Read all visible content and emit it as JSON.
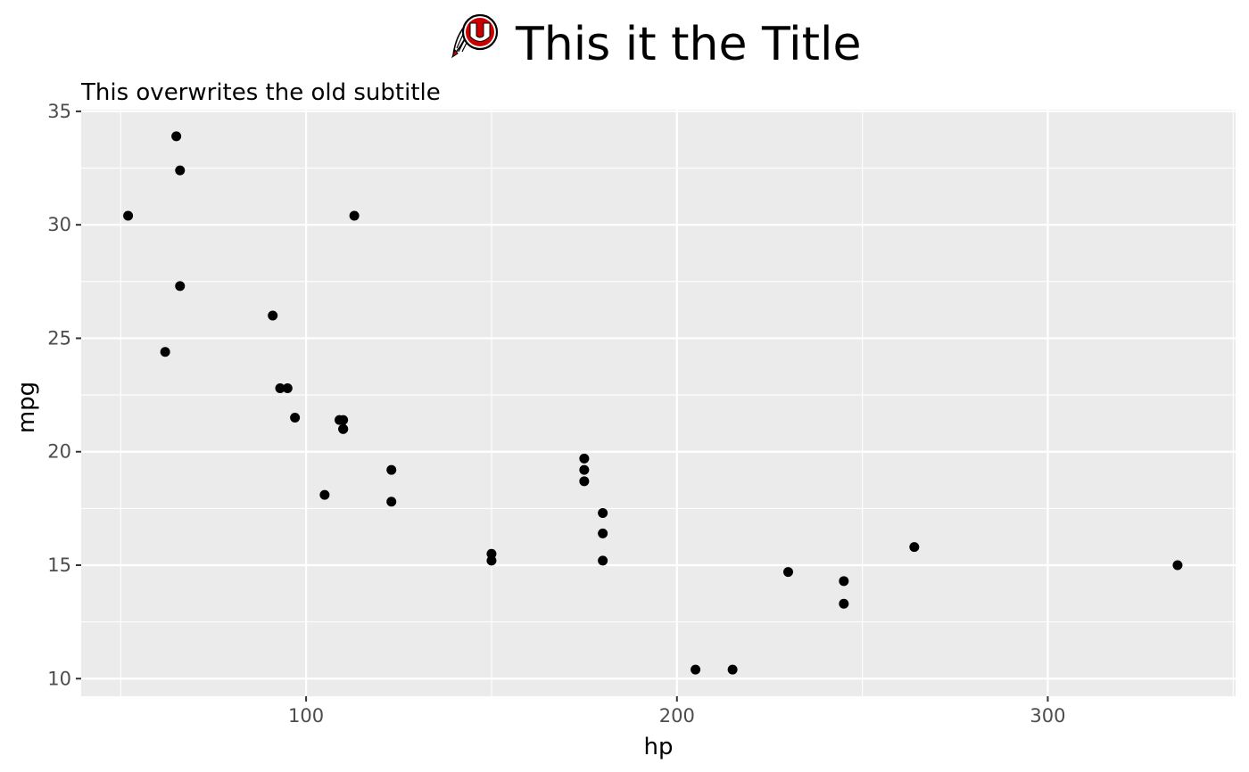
{
  "chart_data": {
    "type": "scatter",
    "title": "This it the Title",
    "subtitle": "This overwrites the old subtitle",
    "xlabel": "hp",
    "ylabel": "mpg",
    "xlim": [
      39.35,
      350.65
    ],
    "ylim": [
      9.225,
      35.075
    ],
    "xticks": [
      100,
      200,
      300
    ],
    "yticks": [
      10,
      15,
      20,
      25,
      30,
      35
    ],
    "grid": true,
    "legend": "none",
    "point_color": "#000000",
    "panel_color": "#EBEBEB",
    "logo_colors": {
      "red": "#CC0000",
      "outline": "#000000"
    },
    "points": [
      {
        "x": 110,
        "y": 21.0
      },
      {
        "x": 110,
        "y": 21.0
      },
      {
        "x": 93,
        "y": 22.8
      },
      {
        "x": 110,
        "y": 21.4
      },
      {
        "x": 175,
        "y": 18.7
      },
      {
        "x": 105,
        "y": 18.1
      },
      {
        "x": 245,
        "y": 14.3
      },
      {
        "x": 62,
        "y": 24.4
      },
      {
        "x": 95,
        "y": 22.8
      },
      {
        "x": 123,
        "y": 19.2
      },
      {
        "x": 123,
        "y": 17.8
      },
      {
        "x": 180,
        "y": 16.4
      },
      {
        "x": 180,
        "y": 17.3
      },
      {
        "x": 180,
        "y": 15.2
      },
      {
        "x": 205,
        "y": 10.4
      },
      {
        "x": 215,
        "y": 10.4
      },
      {
        "x": 230,
        "y": 14.7
      },
      {
        "x": 66,
        "y": 32.4
      },
      {
        "x": 52,
        "y": 30.4
      },
      {
        "x": 65,
        "y": 33.9
      },
      {
        "x": 97,
        "y": 21.5
      },
      {
        "x": 150,
        "y": 15.5
      },
      {
        "x": 150,
        "y": 15.2
      },
      {
        "x": 245,
        "y": 13.3
      },
      {
        "x": 175,
        "y": 19.2
      },
      {
        "x": 66,
        "y": 27.3
      },
      {
        "x": 91,
        "y": 26.0
      },
      {
        "x": 113,
        "y": 30.4
      },
      {
        "x": 264,
        "y": 15.8
      },
      {
        "x": 175,
        "y": 19.7
      },
      {
        "x": 335,
        "y": 15.0
      },
      {
        "x": 109,
        "y": 21.4
      }
    ]
  }
}
